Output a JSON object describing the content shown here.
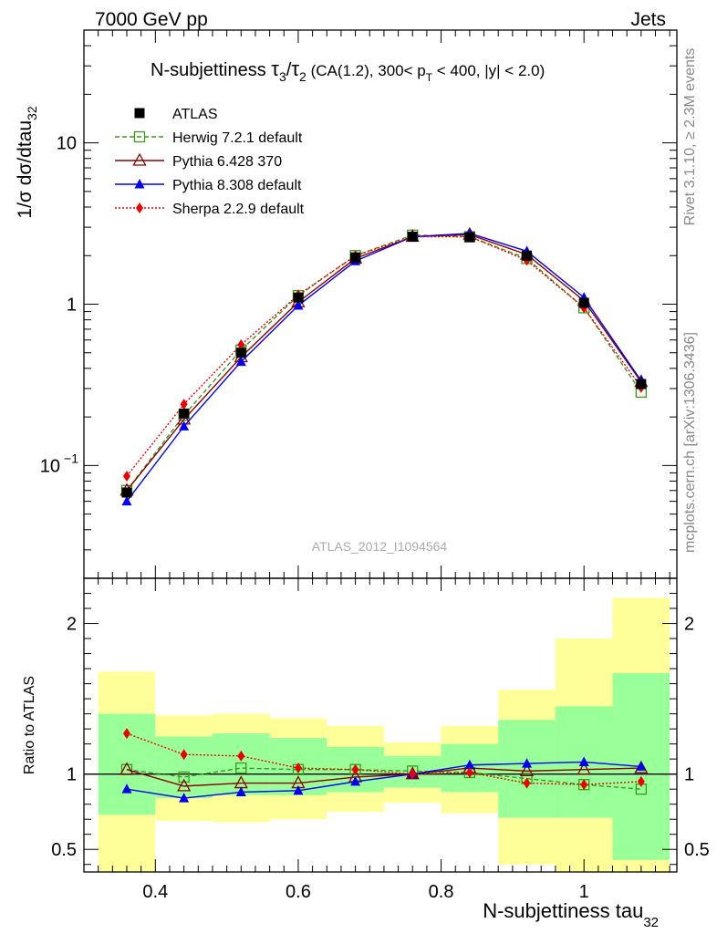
{
  "chart_data": {
    "type": "line",
    "header_left": "7000 GeV pp",
    "header_right": "Jets",
    "title_parts": {
      "main": "N-subjettiness ",
      "tau": "τ",
      "sub3": "3",
      "slash": "/",
      "sub2": "2",
      "rest1": " (CA(1.2), 300< p",
      "subT": "T",
      "rest2": " < 400, |y| < 2.0)"
    },
    "ylabel_main": "1/σ dσ/dtau",
    "ylabel_sub": "32",
    "ratio_ylabel": "Ratio to ATLAS",
    "xlabel_main": "N-subjettiness tau",
    "xlabel_sub": "32",
    "watermark": "ATLAS_2012_I1094564",
    "side_top": "Rivet 3.1.10, ≥ 2.3M events",
    "side_bottom": "mcplots.cern.ch [arXiv:1306.3436]",
    "xlim": [
      0.3,
      1.13
    ],
    "ylim_main": [
      0.02,
      50
    ],
    "ylim_ratio": [
      0.35,
      2.3
    ],
    "y_scale_main": "log",
    "x_ticks": [
      {
        "v": 0.4,
        "label": "0.4"
      },
      {
        "v": 0.6,
        "label": "0.6"
      },
      {
        "v": 0.8,
        "label": "0.8"
      },
      {
        "v": 1.0,
        "label": "1"
      }
    ],
    "y_ticks_main": [
      {
        "v": 0.1,
        "base": "10",
        "exp": "−1"
      },
      {
        "v": 1,
        "base": "1",
        "exp": ""
      },
      {
        "v": 10,
        "base": "10",
        "exp": ""
      }
    ],
    "y_ticks_ratio": [
      {
        "v": 0.5,
        "label": "0.5"
      },
      {
        "v": 1,
        "label": "1"
      },
      {
        "v": 2,
        "label": "2"
      }
    ],
    "bin_edges": [
      0.32,
      0.4,
      0.48,
      0.56,
      0.64,
      0.72,
      0.8,
      0.88,
      0.96,
      1.04,
      1.12
    ],
    "x": [
      0.36,
      0.44,
      0.52,
      0.6,
      0.68,
      0.76,
      0.84,
      0.92,
      1.0,
      1.08
    ],
    "band_yellow": [
      [
        0.32,
        1.68
      ],
      [
        0.69,
        1.39
      ],
      [
        0.68,
        1.4
      ],
      [
        0.7,
        1.37
      ],
      [
        0.75,
        1.32
      ],
      [
        0.81,
        1.21
      ],
      [
        0.74,
        1.32
      ],
      [
        0.4,
        1.56
      ],
      [
        0.34,
        1.9
      ],
      [
        0.34,
        2.17
      ]
    ],
    "band_green": [
      [
        0.73,
        1.4
      ],
      [
        0.84,
        1.25
      ],
      [
        0.86,
        1.27
      ],
      [
        0.86,
        1.24
      ],
      [
        0.88,
        1.18
      ],
      [
        0.91,
        1.12
      ],
      [
        0.88,
        1.2
      ],
      [
        0.71,
        1.36
      ],
      [
        0.71,
        1.45
      ],
      [
        0.43,
        1.67
      ]
    ],
    "legend": [
      {
        "name": "ATLAS",
        "color": "#000000",
        "marker": "square-filled",
        "dash": ""
      },
      {
        "name": "Herwig 7.2.1 default",
        "color": "#3a9a1a",
        "marker": "square-open",
        "dash": "5,3"
      },
      {
        "name": "Pythia 6.428 370",
        "color": "#8b0000",
        "marker": "triangle-open",
        "dash": ""
      },
      {
        "name": "Pythia 8.308 default",
        "color": "#0000ee",
        "marker": "triangle-filled",
        "dash": ""
      },
      {
        "name": "Sherpa 2.2.9 default",
        "color": "#ee0000",
        "marker": "diamond-filled",
        "dash": "2,2"
      }
    ],
    "series": [
      {
        "name": "ATLAS",
        "values": [
          0.068,
          0.21,
          0.5,
          1.1,
          1.95,
          2.62,
          2.6,
          2.0,
          1.02,
          0.32
        ]
      },
      {
        "name": "Herwig 7.2.1 default",
        "values": [
          0.07,
          0.205,
          0.52,
          1.13,
          2.0,
          2.68,
          2.62,
          1.92,
          0.95,
          0.285
        ]
      },
      {
        "name": "Pythia 6.428 370",
        "values": [
          0.07,
          0.193,
          0.47,
          1.03,
          1.92,
          2.62,
          2.7,
          2.03,
          1.05,
          0.33
        ]
      },
      {
        "name": "Pythia 8.308 default",
        "values": [
          0.06,
          0.175,
          0.44,
          0.98,
          1.85,
          2.62,
          2.75,
          2.13,
          1.1,
          0.335
        ]
      },
      {
        "name": "Sherpa 2.2.9 default",
        "values": [
          0.086,
          0.24,
          0.56,
          1.14,
          2.0,
          2.62,
          2.62,
          1.87,
          0.95,
          0.305
        ]
      }
    ],
    "ratios": [
      {
        "name": "Herwig 7.2.1 default",
        "values": [
          1.03,
          0.98,
          1.04,
          1.03,
          1.03,
          1.02,
          1.01,
          0.97,
          0.93,
          0.9
        ]
      },
      {
        "name": "Pythia 6.428 370",
        "values": [
          1.03,
          0.92,
          0.94,
          0.94,
          0.98,
          1.0,
          1.04,
          1.02,
          1.03,
          1.04
        ]
      },
      {
        "name": "Pythia 8.308 default",
        "values": [
          0.9,
          0.84,
          0.88,
          0.89,
          0.95,
          1.0,
          1.06,
          1.07,
          1.08,
          1.05
        ]
      },
      {
        "name": "Sherpa 2.2.9 default",
        "values": [
          1.27,
          1.13,
          1.12,
          1.04,
          1.03,
          1.0,
          1.01,
          0.94,
          0.93,
          0.95
        ]
      }
    ]
  }
}
